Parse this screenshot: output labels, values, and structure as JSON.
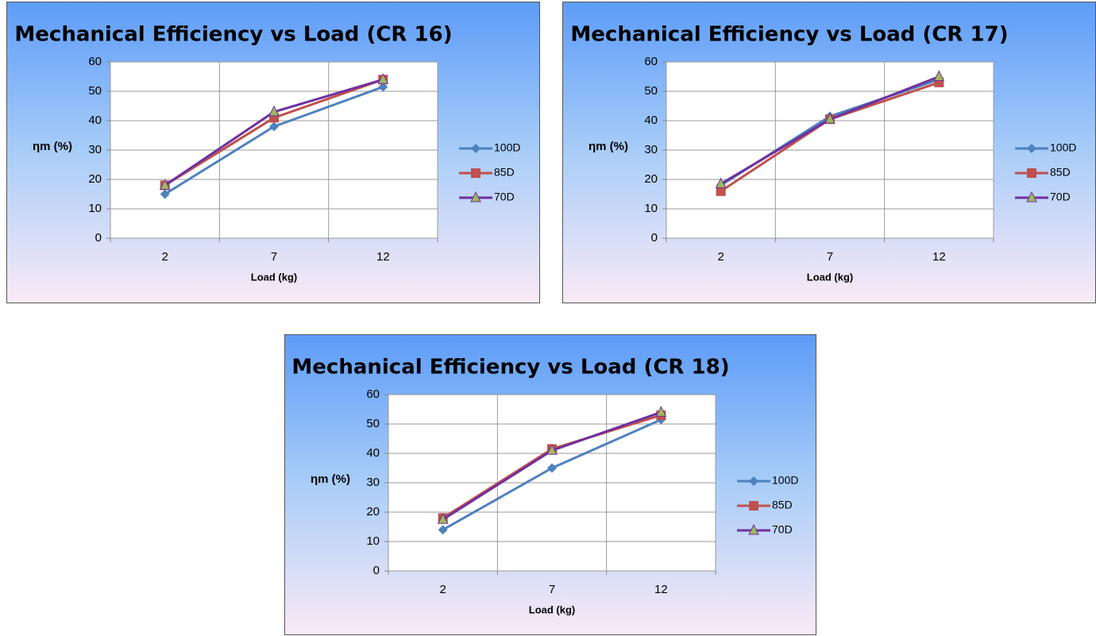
{
  "chart_data": [
    {
      "type": "line",
      "title": "Mechanical Efficiency vs Load (CR 16)",
      "x_label": "Load (kg)",
      "y_label": "ηm (%)",
      "categories": [
        "2",
        "7",
        "12"
      ],
      "ylim": [
        0,
        60
      ],
      "yticks": [
        0,
        10,
        20,
        30,
        40,
        50,
        60
      ],
      "grid": true,
      "legend": "right",
      "series": [
        {
          "name": "100D",
          "color": "#4f81bd",
          "marker": "diamond",
          "marker_color": "#4f81bd",
          "values": [
            15,
            38,
            51.5
          ]
        },
        {
          "name": "85D",
          "color": "#c0504d",
          "marker": "square",
          "marker_color": "#c0504d",
          "values": [
            18,
            41,
            54
          ]
        },
        {
          "name": "70D",
          "color": "#7030a0",
          "marker": "triangle",
          "marker_color": "#9bbb59",
          "values": [
            18,
            43,
            54
          ]
        }
      ]
    },
    {
      "type": "line",
      "title": "Mechanical Efficiency vs Load (CR 17)",
      "x_label": "Load (kg)",
      "y_label": "ηm (%)",
      "categories": [
        "2",
        "7",
        "12"
      ],
      "ylim": [
        0,
        60
      ],
      "yticks": [
        0,
        10,
        20,
        30,
        40,
        50,
        60
      ],
      "grid": true,
      "legend": "right",
      "series": [
        {
          "name": "100D",
          "color": "#4f81bd",
          "marker": "diamond",
          "marker_color": "#4f81bd",
          "values": [
            18,
            41.5,
            54
          ]
        },
        {
          "name": "85D",
          "color": "#c0504d",
          "marker": "square",
          "marker_color": "#c0504d",
          "values": [
            16,
            40.5,
            53
          ]
        },
        {
          "name": "70D",
          "color": "#7030a0",
          "marker": "triangle",
          "marker_color": "#9bbb59",
          "values": [
            18.5,
            40.5,
            55
          ]
        }
      ]
    },
    {
      "type": "line",
      "title": "Mechanical Efficiency vs Load (CR 18)",
      "x_label": "Load (kg)",
      "y_label": "ηm (%)",
      "categories": [
        "2",
        "7",
        "12"
      ],
      "ylim": [
        0,
        60
      ],
      "yticks": [
        0,
        10,
        20,
        30,
        40,
        50,
        60
      ],
      "grid": true,
      "legend": "right",
      "series": [
        {
          "name": "100D",
          "color": "#4f81bd",
          "marker": "diamond",
          "marker_color": "#4f81bd",
          "values": [
            14,
            35,
            51.5
          ]
        },
        {
          "name": "85D",
          "color": "#c0504d",
          "marker": "square",
          "marker_color": "#c0504d",
          "values": [
            18,
            41.5,
            53
          ]
        },
        {
          "name": "70D",
          "color": "#7030a0",
          "marker": "triangle",
          "marker_color": "#9bbb59",
          "values": [
            17.5,
            41,
            54
          ]
        }
      ]
    }
  ]
}
